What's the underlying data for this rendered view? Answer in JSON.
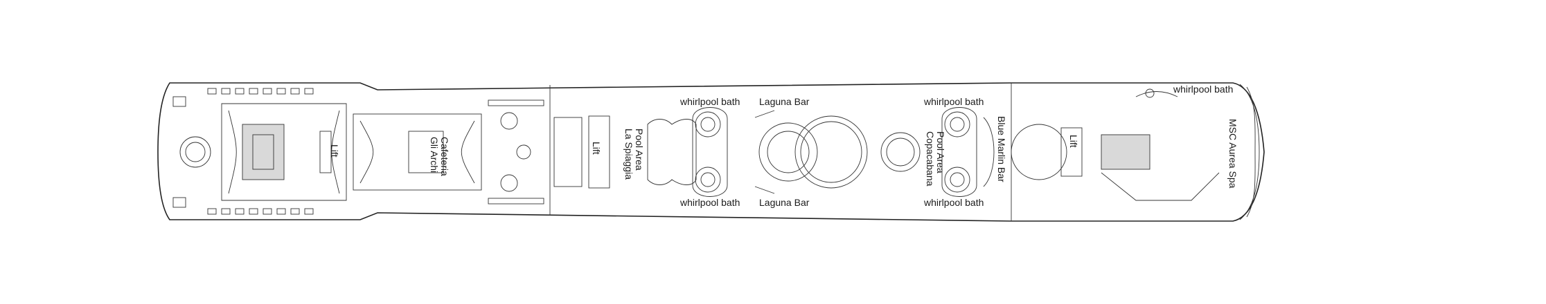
{
  "deck_plan": {
    "labels": {
      "lift_1": "Lift",
      "cafeteria_line1": "Gli Archi",
      "cafeteria_line2": "Cafeteria",
      "lift_2": "Lift",
      "pool_spiaggia_line1": "La Spiaggia",
      "pool_spiaggia_line2": "Pool Area",
      "whirlpool_1": "whirlpool bath",
      "whirlpool_2": "whirlpool bath",
      "laguna_bar_top": "Laguna Bar",
      "laguna_bar_bottom": "Laguna Bar",
      "whirlpool_3": "whirlpool bath",
      "whirlpool_4": "whirlpool bath",
      "pool_copacabana_line1": "Copacabana",
      "pool_copacabana_line2": "Pool Area",
      "blue_marlin_bar": "Blue Marlin Bar",
      "lift_3": "Lift",
      "whirlpool_5": "whirlpool bath",
      "spa": "MSC Aurea Spa"
    }
  }
}
